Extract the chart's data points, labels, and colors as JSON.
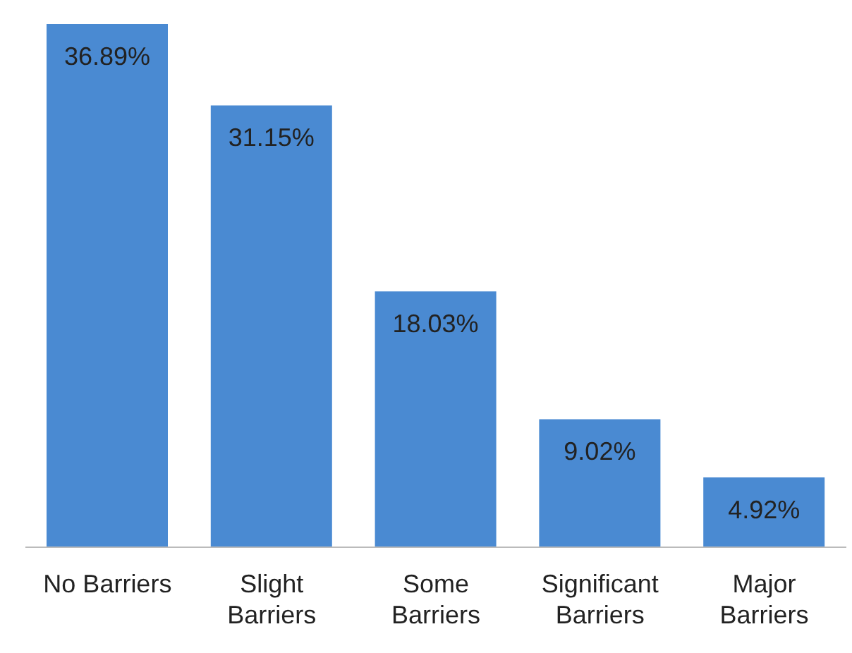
{
  "chart_data": {
    "type": "bar",
    "categories": [
      "No Barriers",
      "Slight Barriers",
      "Some Barriers",
      "Significant Barriers",
      "Major Barriers"
    ],
    "values": [
      36.89,
      31.15,
      18.03,
      9.02,
      4.92
    ],
    "value_labels": [
      "36.89%",
      "31.15%",
      "18.03%",
      "9.02%",
      "4.92%"
    ],
    "color": "#4a8ad2",
    "grid": false,
    "legend": false
  }
}
